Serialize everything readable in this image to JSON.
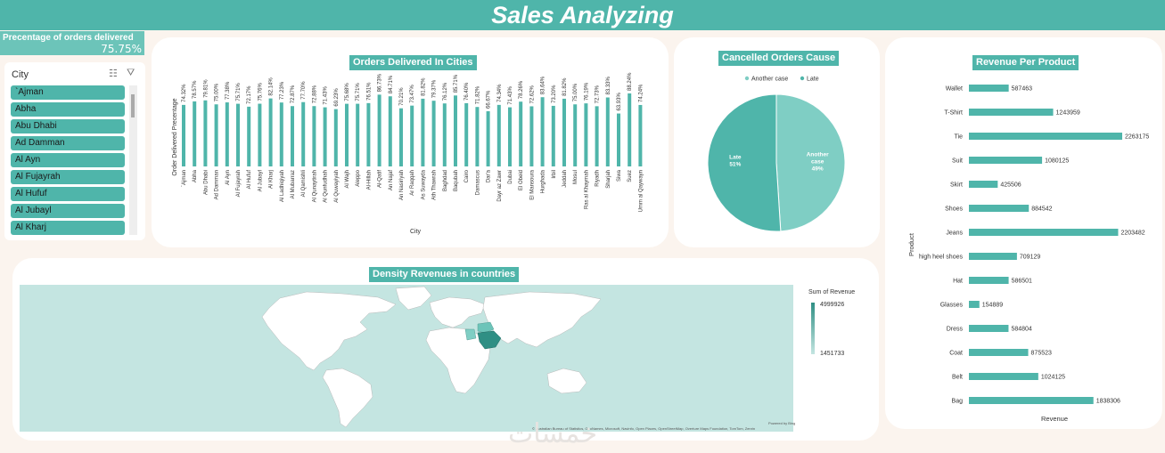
{
  "header": {
    "title": "Sales Analyzing"
  },
  "kpi": {
    "label": "Precentage of orders delivered",
    "value": "75.75%"
  },
  "slicer": {
    "title": "City",
    "items": [
      "`Ajman",
      "Abha",
      "Abu Dhabi",
      "Ad Damman",
      "Al Ayn",
      "Al Fujayrah",
      "Al Hufuf",
      "Al Jubayl",
      "Al Kharj"
    ]
  },
  "charts": {
    "cities": {
      "title": "Orders Delivered In Cities",
      "ylabel": "Order Delivered Precentage",
      "xlabel": "City"
    },
    "cancel": {
      "title": "Cancelled Orders Cause",
      "legend": [
        "Another case",
        "Late"
      ],
      "slice_labels": [
        {
          "name": "Another case",
          "pct": "49%"
        },
        {
          "name": "Late",
          "pct": "51%"
        }
      ]
    },
    "map": {
      "title": "Density Revenues in countries",
      "legend_title": "Sum of Revenue",
      "legend_max": "4999926",
      "legend_min": "1451733",
      "powered": "Powered by Bing",
      "attribution": "© Australian Bureau of Statistics, GeoNames, Microsoft, Navinfo, Open Places, OpenStreetMap, Overture Maps Foundation, TomTom, Zenrin"
    },
    "products": {
      "title": "Revenue Per Product",
      "ylabel": "Product",
      "xlabel": "Revenue"
    }
  },
  "chart_data": [
    {
      "type": "bar",
      "title": "Orders Delivered In Cities",
      "xlabel": "City",
      "ylabel": "Order Delivered Precentage",
      "categories": [
        "`Ajman",
        "Abha",
        "Abu Dhabi",
        "Ad Damman",
        "Al Ayn",
        "Al Fujayrah",
        "Al Hufuf",
        "Al Jubayl",
        "Al Kharj",
        "Al Ladhiqiyah",
        "Al Mubarraz",
        "Al Qamishli",
        "Al Qunaytirah",
        "Al Qunfudhah",
        "Al Quwayiyah",
        "Al Wajh",
        "Aleppo",
        "Al-Hillah",
        "Al-Qatif",
        "An Najaf",
        "An Nasiriyah",
        "Ar Raqqah",
        "As Suwayda",
        "Ath Thawrah",
        "Baghdad",
        "Baqubah",
        "Cairo",
        "Damascus",
        "Dar'a",
        "Dayr az Zawr",
        "Dubai",
        "El Obeid",
        "El Mansoura",
        "Hurghada",
        "Irbil",
        "Jeddah",
        "Mosul",
        "Ras al Khaymah",
        "Riyadh",
        "Sharjah",
        "Siwa",
        "Suez",
        "Umm al Qaywayn"
      ],
      "values": [
        74.32,
        78.57,
        79.81,
        75.0,
        77.38,
        75.71,
        72.17,
        75.76,
        82.14,
        77.23,
        72.87,
        77.7,
        72.88,
        71.43,
        69.23,
        75.68,
        75.71,
        76.51,
        86.73,
        84.71,
        70.21,
        73.47,
        81.82,
        79.37,
        76.12,
        85.71,
        76.4,
        71.82,
        66.67,
        74.34,
        71.43,
        78.26,
        72.62,
        83.64,
        73.2,
        81.82,
        75.0,
        76.19,
        72.73,
        83.33,
        63.93,
        88.24,
        74.24
      ],
      "value_labels": [
        "74.32%",
        "78.57%",
        "79.81%",
        "75.00%",
        "77.38%",
        "75.71%",
        "72.17%",
        "75.76%",
        "82.14%",
        "77.23%",
        "72.87%",
        "77.70%",
        "72.88%",
        "71.43%",
        "69.23%",
        "75.68%",
        "75.71%",
        "76.51%",
        "86.73%",
        "84.71%",
        "70.21%",
        "73.47%",
        "81.82%",
        "79.37%",
        "76.12%",
        "85.71%",
        "76.40%",
        "71.82%",
        "66.67%",
        "74.34%",
        "71.43%",
        "78.26%",
        "72.62%",
        "83.64%",
        "73.20%",
        "81.82%",
        "75.00%",
        "76.19%",
        "72.73%",
        "83.33%",
        "63.93%",
        "88.24%",
        "74.24%"
      ],
      "ylim": [
        0,
        100
      ],
      "bar_color": "#4fb5aa"
    },
    {
      "type": "pie",
      "title": "Cancelled Orders Cause",
      "categories": [
        "Another case",
        "Late"
      ],
      "values": [
        49,
        51
      ],
      "colors": [
        "#7fcec4",
        "#4fb5aa"
      ],
      "legend": "top"
    },
    {
      "type": "bar",
      "orientation": "horizontal",
      "title": "Revenue Per Product",
      "xlabel": "Revenue",
      "ylabel": "Product",
      "categories": [
        "Wallet",
        "T-Shirt",
        "Tie",
        "Suit",
        "Skirt",
        "Shoes",
        "Jeans",
        "high heel shoes",
        "Hat",
        "Glasses",
        "Dress",
        "Coat",
        "Belt",
        "Bag"
      ],
      "values": [
        587463,
        1243959,
        2263175,
        1080125,
        425506,
        884542,
        2203482,
        709129,
        586501,
        154889,
        584804,
        875523,
        1024125,
        1838306
      ],
      "bar_color": "#4fb5aa"
    }
  ],
  "colors": {
    "accent": "#4fb5aa",
    "light": "#7fcec4",
    "sea": "#c4e5e1",
    "background": "#fbf4ee"
  }
}
